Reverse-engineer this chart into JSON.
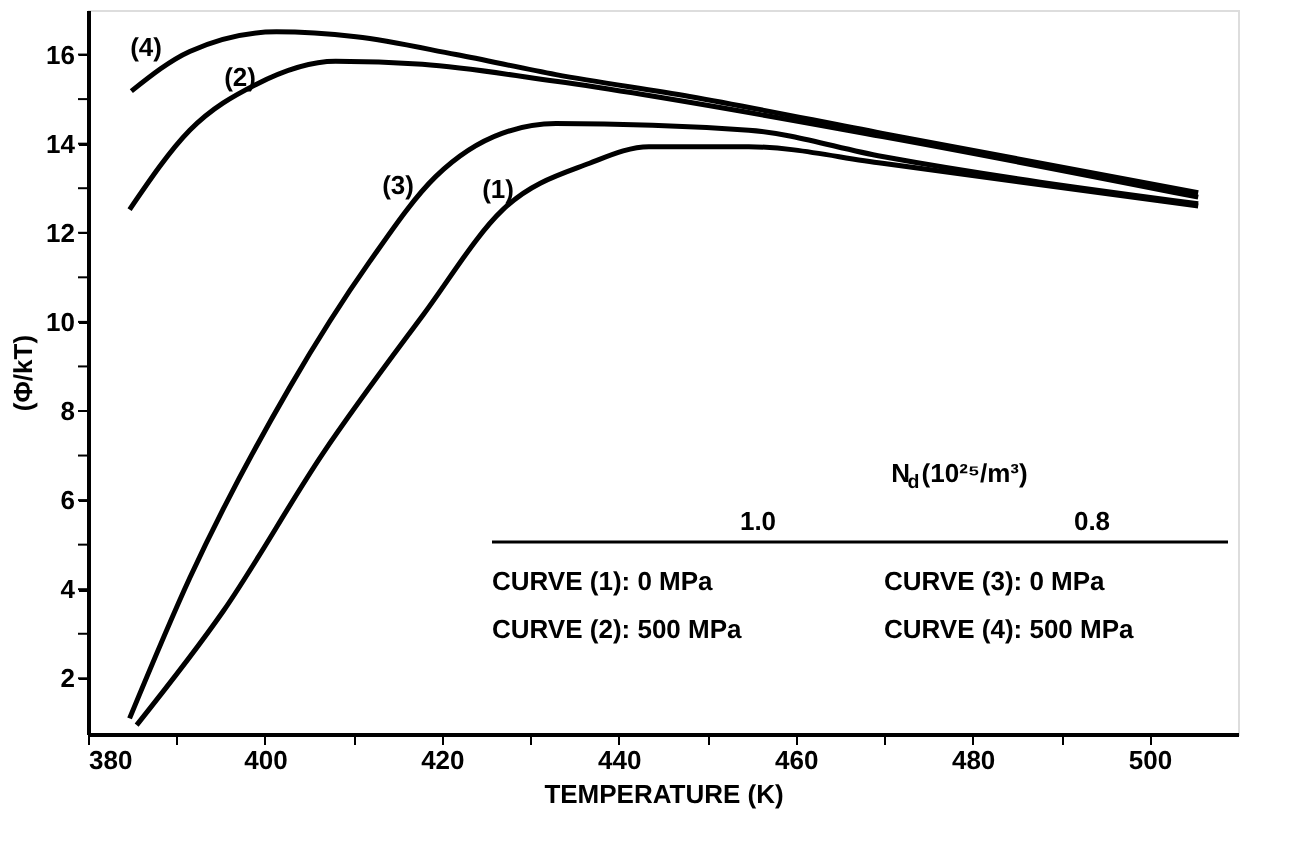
{
  "chart_data": {
    "type": "line",
    "xlabel": "TEMPERATURE (K)",
    "ylabel": "(Φ/kT)",
    "xlim": [
      380,
      510
    ],
    "ylim": [
      0.75,
      17
    ],
    "xticks": [
      380,
      {
        "value": 390,
        "label": null
      },
      400,
      {
        "value": 410,
        "label": null
      },
      420,
      {
        "value": 430,
        "label": null
      },
      440,
      {
        "value": 450,
        "label": null
      },
      460,
      {
        "value": 470,
        "label": null
      },
      480,
      {
        "value": 490,
        "label": null
      },
      500
    ],
    "yticks": [
      2,
      {
        "value": 3,
        "label": null
      },
      4,
      {
        "value": 5,
        "label": null
      },
      6,
      {
        "value": 7,
        "label": null
      },
      8,
      {
        "value": 9,
        "label": null
      },
      10,
      {
        "value": 11,
        "label": null
      },
      12,
      {
        "value": 13,
        "label": null
      },
      14,
      {
        "value": 15,
        "label": null
      },
      16
    ],
    "grid": false,
    "marker": "none",
    "line_style": "solid",
    "series": [
      {
        "color": "#000000",
        "x": [
          385.5,
          395.3,
          406.6,
          417.9,
          426.9,
          436.7,
          443.4,
          454.7,
          469.8,
          505.5
        ],
        "values": [
          0.95,
          3.51,
          7.06,
          10.16,
          12.52,
          13.56,
          13.93,
          13.93,
          13.56,
          12.6
        ]
      },
      {
        "color": "#000000",
        "x": [
          384.7,
          391.5,
          399.0,
          408.0,
          417.8,
          432.9,
          469.8,
          505.5
        ],
        "values": [
          12.52,
          14.3,
          15.33,
          15.85,
          15.78,
          15.4,
          14.16,
          12.8
        ]
      },
      {
        "color": "#000000",
        "x": [
          384.7,
          391.5,
          402.8,
          411.8,
          419.3,
          426.8,
          432.9,
          454.7,
          469.8,
          505.5
        ],
        "values": [
          1.1,
          4.25,
          8.53,
          11.34,
          13.26,
          14.23,
          14.45,
          14.3,
          13.71,
          12.65
        ]
      },
      {
        "color": "#000000",
        "x": [
          384.9,
          391.5,
          401.3,
          410.3,
          421.6,
          432.9,
          448.0,
          469.8,
          505.5
        ],
        "values": [
          15.18,
          16.07,
          16.51,
          16.4,
          16.0,
          15.55,
          15.06,
          14.23,
          12.9
        ]
      }
    ],
    "annotations": [
      "(1)",
      "(2)",
      "(3)",
      "(4)",
      "N$_{d}$(10²⁵/m³)",
      "1.0",
      "0.8",
      "CURVE (1): 0 MPa",
      "CURVE (3): 0 MPa",
      "CURVE (2): 500 MPa",
      "CURVE (4): 500 MPa"
    ]
  }
}
